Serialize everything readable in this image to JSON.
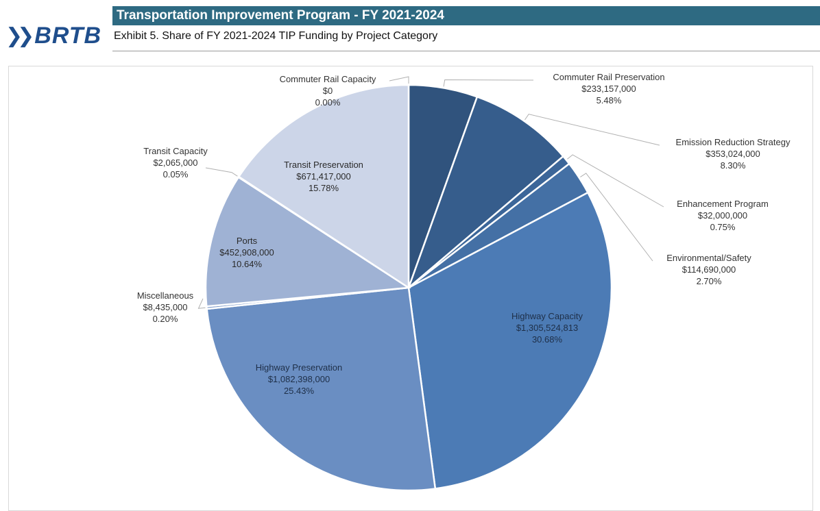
{
  "header": {
    "title": "Transportation Improvement Program - FY 2021-2024",
    "logo_text": "BRTB",
    "subtitle": "Exhibit 5. Share of FY 2021-2024 TIP Funding by Project Category"
  },
  "colors": {
    "title_bar": "#2e6a82",
    "logo": "#1f4e8c"
  },
  "chart_data": {
    "type": "pie",
    "title": "",
    "slices": [
      {
        "name": "Commuter Rail Capacity",
        "amount": "$0",
        "value": 0.0,
        "percent": "0.00%",
        "color": "#2d4f77"
      },
      {
        "name": "Commuter Rail Preservation",
        "amount": "$233,157,000",
        "value": 5.48,
        "percent": "5.48%",
        "color": "#30537d"
      },
      {
        "name": "Emission Reduction Strategy",
        "amount": "$353,024,000",
        "value": 8.3,
        "percent": "8.30%",
        "color": "#365d8c"
      },
      {
        "name": "Enhancement Program",
        "amount": "$32,000,000",
        "value": 0.75,
        "percent": "0.75%",
        "color": "#3c6699"
      },
      {
        "name": "Environmental/Safety",
        "amount": "$114,690,000",
        "value": 2.7,
        "percent": "2.70%",
        "color": "#4470a5"
      },
      {
        "name": "Highway Capacity",
        "amount": "$1,305,524,813",
        "value": 30.68,
        "percent": "30.68%",
        "color": "#4c7bb5"
      },
      {
        "name": "Highway Preservation",
        "amount": "$1,082,398,000",
        "value": 25.43,
        "percent": "25.43%",
        "color": "#6a8ec2"
      },
      {
        "name": "Miscellaneous",
        "amount": "$8,435,000",
        "value": 0.2,
        "percent": "0.20%",
        "color": "#7f9ccb"
      },
      {
        "name": "Ports",
        "amount": "$452,908,000",
        "value": 10.64,
        "percent": "10.64%",
        "color": "#9fb2d4"
      },
      {
        "name": "Transit Capacity",
        "amount": "$2,065,000",
        "value": 0.05,
        "percent": "0.05%",
        "color": "#b6c3de"
      },
      {
        "name": "Transit Preservation",
        "amount": "$671,417,000",
        "value": 15.78,
        "percent": "15.78%",
        "color": "#ccd5e8"
      }
    ]
  }
}
